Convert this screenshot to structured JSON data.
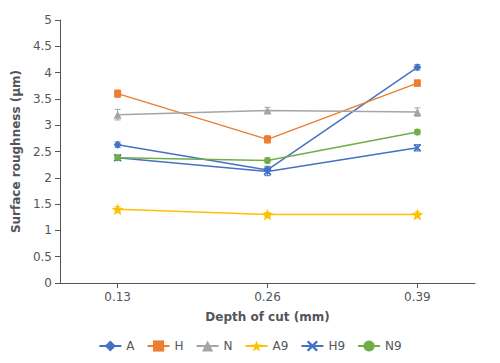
{
  "chart_data": {
    "type": "line",
    "x": [
      0.13,
      0.26,
      0.39
    ],
    "xlabel": "Depth of cut (mm)",
    "ylabel": "Surface roughness (μm)",
    "xlim": [
      0.08,
      0.44
    ],
    "xticks": [
      0.13,
      0.26,
      0.39
    ],
    "ylim": [
      0,
      5
    ],
    "yticks": [
      0,
      0.5,
      1.0,
      1.5,
      2.0,
      2.5,
      3.0,
      3.5,
      4.0,
      4.5,
      5.0
    ],
    "grid": false,
    "legend": "bottom",
    "series": [
      {
        "name": "A",
        "color": "#4472C4",
        "marker": "diamond",
        "values": [
          2.63,
          2.15,
          4.1
        ],
        "errors": [
          0.05,
          0.07,
          0.05
        ]
      },
      {
        "name": "H",
        "color": "#ED7D31",
        "marker": "square",
        "values": [
          3.6,
          2.73,
          3.8
        ],
        "errors": [
          0.07,
          0.07,
          0.06
        ]
      },
      {
        "name": "N",
        "color": "#A5A5A5",
        "marker": "triangle",
        "values": [
          3.2,
          3.28,
          3.25
        ],
        "errors": [
          0.1,
          0.06,
          0.08
        ]
      },
      {
        "name": "A9",
        "color": "#FFC000",
        "marker": "star",
        "values": [
          1.4,
          1.3,
          1.3
        ],
        "errors": [
          0.05,
          0.04,
          0.05
        ]
      },
      {
        "name": "H9",
        "color": "#4472C4",
        "marker": "x",
        "values": [
          2.38,
          2.12,
          2.57
        ],
        "errors": [
          0.05,
          0.08,
          0.06
        ]
      },
      {
        "name": "N9",
        "color": "#70AD47",
        "marker": "circle",
        "values": [
          2.38,
          2.33,
          2.87
        ],
        "errors": [
          0.05,
          0.05,
          0.05
        ]
      }
    ]
  }
}
